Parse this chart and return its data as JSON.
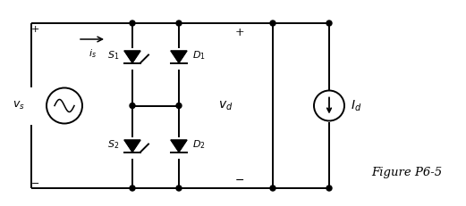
{
  "figure_label": "Figure P6-5",
  "bg_color": "#ffffff",
  "line_color": "#000000",
  "fig_width": 5.21,
  "fig_height": 2.31,
  "dpi": 100
}
